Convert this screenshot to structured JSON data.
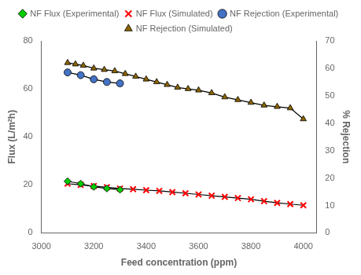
{
  "chart_data": {
    "type": "line",
    "color": "black",
    "xlabel": "Feed concentration (ppm)",
    "ylabel": "Flux (L/m²h)",
    "y2label": "% Rejection",
    "xlim": [
      3000,
      4050
    ],
    "xticks": [
      3000,
      3200,
      3400,
      3600,
      3800,
      4000
    ],
    "ylim": [
      0,
      80
    ],
    "yticks": [
      0,
      20,
      40,
      60,
      80
    ],
    "y2lim": [
      0,
      70
    ],
    "y2ticks": [
      0,
      10,
      20,
      30,
      40,
      50,
      60,
      70
    ],
    "grid": false,
    "legend": "top",
    "series": [
      {
        "name": "NF Flux (Experimental)",
        "color": "#00cc00",
        "marker": "diamond",
        "axis": "y",
        "x": [
          3100,
          3150,
          3200,
          3250,
          3300
        ],
        "values": [
          21.5,
          20.5,
          19.2,
          18.5,
          18.0
        ]
      },
      {
        "name": "NF Flux (Simulated)",
        "color": "#ff0000",
        "marker": "x",
        "axis": "y",
        "x": [
          3100,
          3150,
          3200,
          3250,
          3300,
          3350,
          3400,
          3450,
          3500,
          3550,
          3600,
          3650,
          3700,
          3750,
          3800,
          3850,
          3900,
          3950,
          4000
        ],
        "values": [
          20.5,
          20.0,
          19.5,
          19.0,
          18.5,
          18.2,
          17.8,
          17.5,
          17.0,
          16.5,
          16.0,
          15.5,
          15.0,
          14.5,
          14.0,
          13.2,
          12.5,
          12.0,
          11.5
        ]
      },
      {
        "name": "NF Rejection (Experimental)",
        "color": "#4472c4",
        "marker": "circle",
        "axis": "y2",
        "x": [
          3100,
          3150,
          3200,
          3250,
          3300
        ],
        "values": [
          58.5,
          57.5,
          56.0,
          55.0,
          54.5
        ]
      },
      {
        "name": "NF Rejection (Simulated)",
        "color": "#8B6400",
        "marker": "triangle",
        "axis": "y2",
        "x": [
          3100,
          3130,
          3160,
          3200,
          3240,
          3280,
          3320,
          3360,
          3400,
          3440,
          3480,
          3520,
          3560,
          3600,
          3650,
          3700,
          3750,
          3800,
          3850,
          3900,
          3950,
          4000
        ],
        "values": [
          62.0,
          61.5,
          61.0,
          60.0,
          59.5,
          59.0,
          58.0,
          57.0,
          56.0,
          55.0,
          54.0,
          53.0,
          52.5,
          52.0,
          51.0,
          49.5,
          48.5,
          47.5,
          46.5,
          46.0,
          45.5,
          41.5
        ]
      }
    ]
  }
}
